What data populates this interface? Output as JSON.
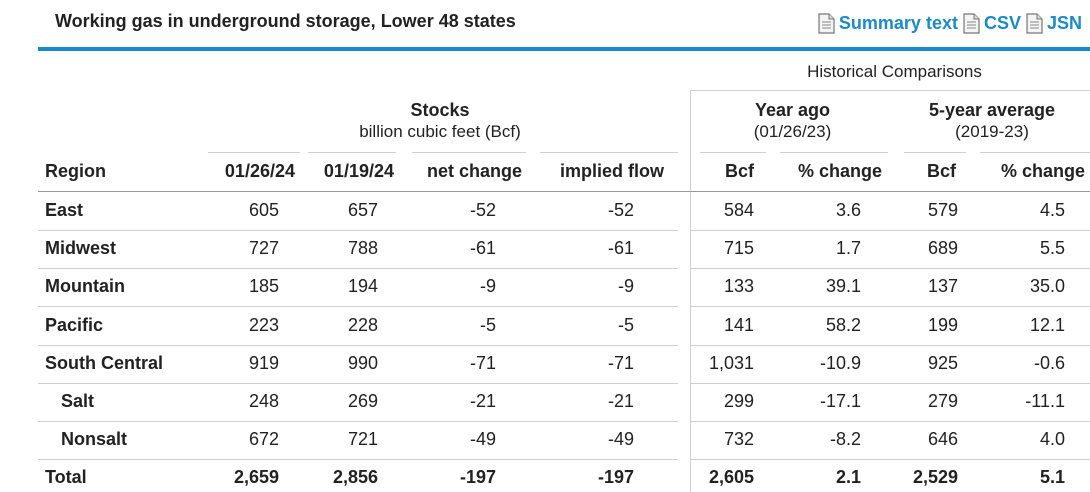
{
  "title": "Working gas in underground storage, Lower 48 states",
  "links": [
    {
      "label": "Summary text",
      "icon": "document-icon"
    },
    {
      "label": "CSV",
      "icon": "document-icon"
    },
    {
      "label": "JSN",
      "icon": "document-icon"
    }
  ],
  "accent_color": "#1a8bc9",
  "header": {
    "historical": "Historical Comparisons",
    "stocks": "Stocks",
    "stocks_unit": "billion cubic feet (Bcf)",
    "year_ago": "Year ago",
    "year_ago_date": "(01/26/23)",
    "five_year": "5-year average",
    "five_year_range": "(2019-23)",
    "columns": [
      "Region",
      "01/26/24",
      "01/19/24",
      "net change",
      "implied flow",
      "Bcf",
      "% change",
      "Bcf",
      "% change"
    ]
  },
  "rows": [
    {
      "region": "East",
      "cells": [
        "605",
        "657",
        "-52",
        "-52",
        "584",
        "3.6",
        "579",
        "4.5"
      ]
    },
    {
      "region": "Midwest",
      "cells": [
        "727",
        "788",
        "-61",
        "-61",
        "715",
        "1.7",
        "689",
        "5.5"
      ]
    },
    {
      "region": "Mountain",
      "cells": [
        "185",
        "194",
        "-9",
        "-9",
        "133",
        "39.1",
        "137",
        "35.0"
      ]
    },
    {
      "region": "Pacific",
      "cells": [
        "223",
        "228",
        "-5",
        "-5",
        "141",
        "58.2",
        "199",
        "12.1"
      ]
    },
    {
      "region": "South Central",
      "cells": [
        "919",
        "990",
        "-71",
        "-71",
        "1,031",
        "-10.9",
        "925",
        "-0.6"
      ]
    },
    {
      "region": "Salt",
      "cells": [
        "248",
        "269",
        "-21",
        "-21",
        "299",
        "-17.1",
        "279",
        "-11.1"
      ]
    },
    {
      "region": "Nonsalt",
      "cells": [
        "672",
        "721",
        "-49",
        "-49",
        "732",
        "-8.2",
        "646",
        "4.0"
      ]
    },
    {
      "region": "Total",
      "cells": [
        "2,659",
        "2,856",
        "-197",
        "-197",
        "2,605",
        "2.1",
        "2,529",
        "5.1"
      ]
    }
  ]
}
